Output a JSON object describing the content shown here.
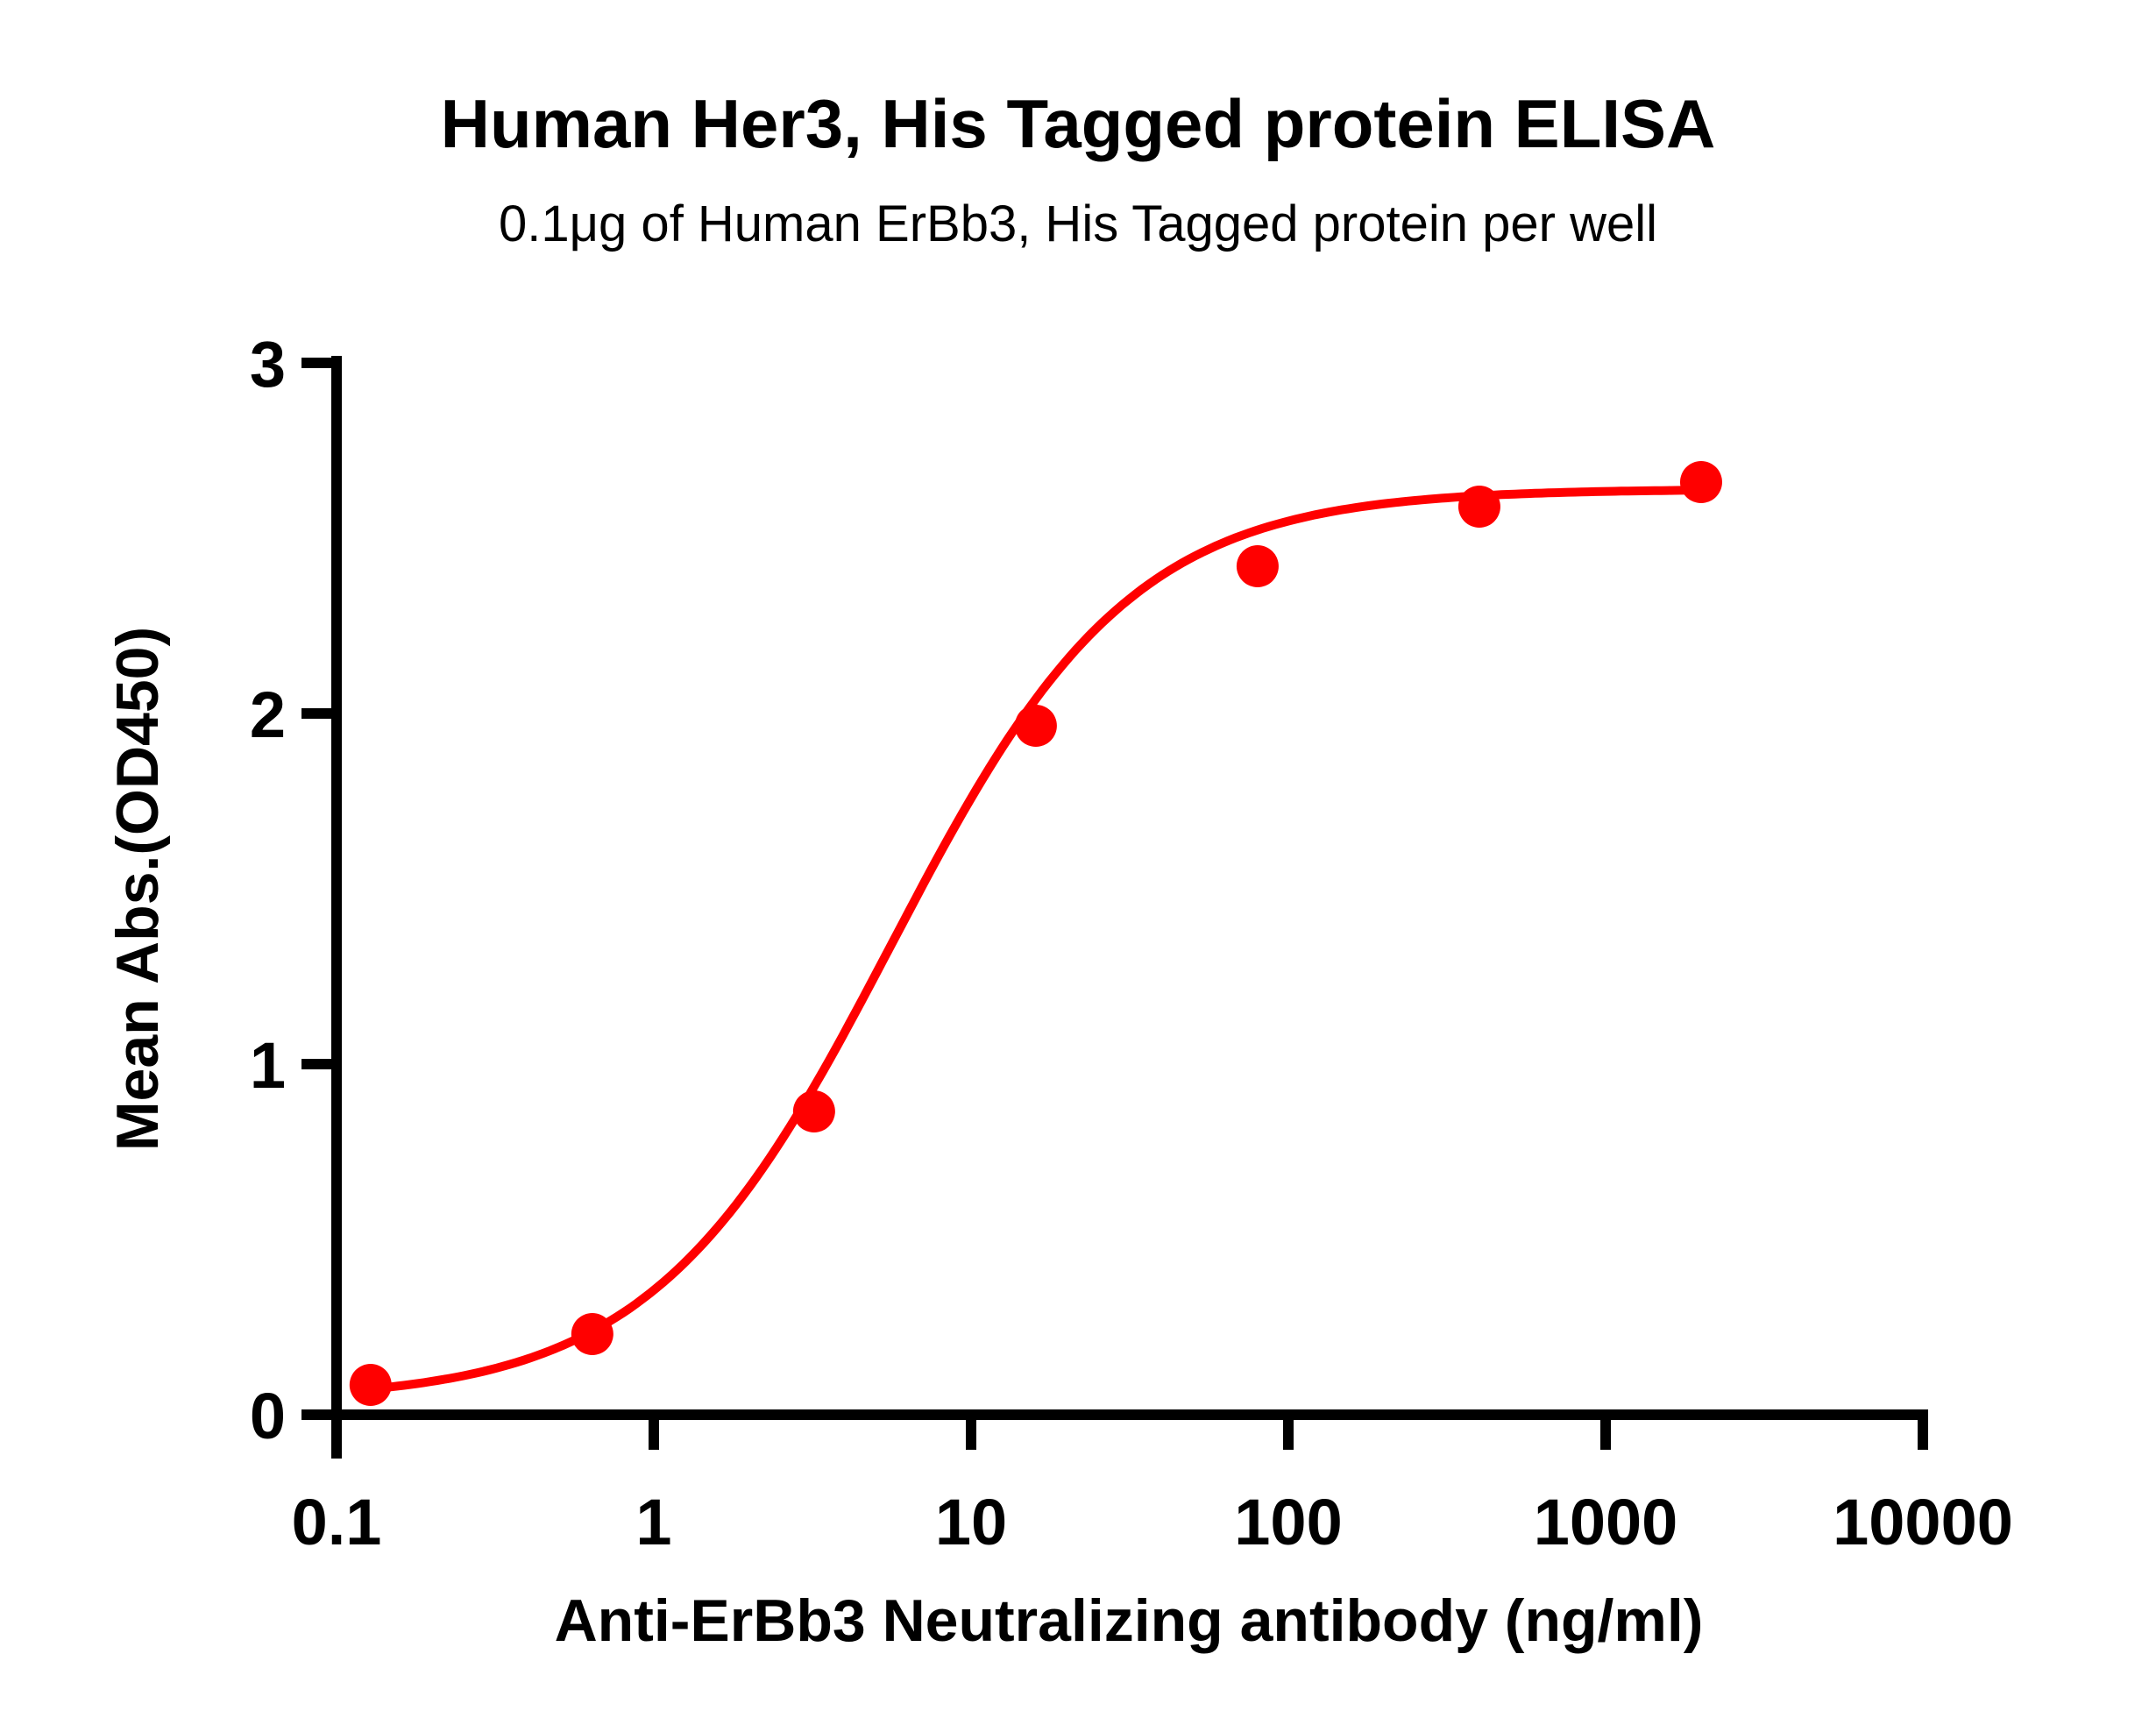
{
  "chart_data": {
    "type": "scatter",
    "title": "Human Her3, His Tagged protein ELISA",
    "subtitle": "0.1μg of Human ErBb3, His Tagged protein per well",
    "xlabel": "Anti-ErBb3 Neutralizing antibody (ng/ml)",
    "ylabel": "Mean Abs.(OD450)",
    "xscale": "log",
    "xlim": [
      0.1,
      10000
    ],
    "ylim": [
      0,
      3
    ],
    "xticks": [
      "0.1",
      "1",
      "10",
      "100",
      "1000",
      "10000"
    ],
    "yticks": [
      "0",
      "1",
      "2",
      "3"
    ],
    "grid": false,
    "legend": null,
    "series": [
      {
        "name": "Mean Abs. (OD450)",
        "color": "#ff0000",
        "x": [
          0.128,
          0.64,
          3.2,
          16,
          80,
          400,
          2000
        ],
        "y": [
          0.085,
          0.23,
          0.865,
          1.965,
          2.42,
          2.59,
          2.66
        ],
        "fit": {
          "model": "4PL sigmoidal",
          "bottom": 0.04,
          "top": 2.64,
          "ec50": 5.6,
          "hill": 1.15
        }
      }
    ]
  }
}
